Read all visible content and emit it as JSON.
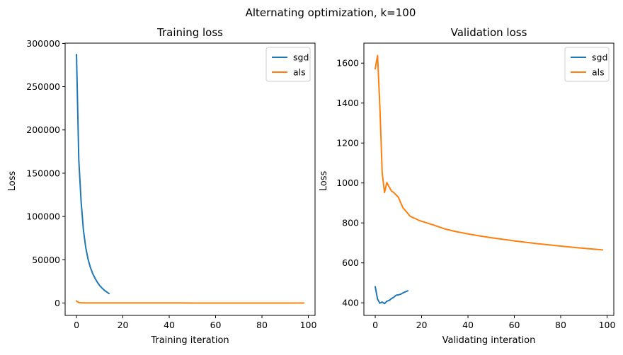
{
  "figure_title": "Alternating optimization, k=100",
  "colors": {
    "sgd": "#1f77b4",
    "als": "#ff7f0e"
  },
  "chart_data": [
    {
      "type": "line",
      "title": "Training loss",
      "xlabel": "Training iteration",
      "ylabel": "Loss",
      "xlim": [
        -4.9,
        102.9
      ],
      "ylim": [
        -14300,
        300300
      ],
      "xticks": [
        0,
        20,
        40,
        60,
        80,
        100
      ],
      "yticks": [
        0,
        50000,
        100000,
        150000,
        200000,
        250000,
        300000
      ],
      "grid": false,
      "legend": "top-right",
      "series": [
        {
          "name": "sgd",
          "color": "#1f77b4",
          "x": [
            0,
            1,
            2,
            3,
            4,
            5,
            6,
            7,
            8,
            9,
            10,
            11,
            12,
            13,
            14
          ],
          "y": [
            287000,
            165000,
            117000,
            84000,
            64000,
            50500,
            41000,
            34000,
            28500,
            24000,
            20200,
            17300,
            14800,
            12800,
            11000
          ]
        },
        {
          "name": "als",
          "color": "#ff7f0e",
          "x": [
            0,
            1,
            2,
            3,
            4,
            5,
            10,
            15,
            20,
            30,
            40,
            50,
            60,
            70,
            80,
            90,
            98
          ],
          "y": [
            2300,
            500,
            250,
            180,
            140,
            120,
            90,
            80,
            70,
            60,
            55,
            50,
            45,
            40,
            38,
            35,
            33
          ]
        }
      ]
    },
    {
      "type": "line",
      "title": "Validation loss",
      "xlabel": "Validating interation",
      "ylabel": "Loss",
      "xlim": [
        -4.9,
        102.9
      ],
      "ylim": [
        337,
        1700
      ],
      "xticks": [
        0,
        20,
        40,
        60,
        80,
        100
      ],
      "yticks": [
        400,
        600,
        800,
        1000,
        1200,
        1400,
        1600
      ],
      "grid": false,
      "legend": "top-right",
      "series": [
        {
          "name": "sgd",
          "color": "#1f77b4",
          "x": [
            0,
            1,
            2,
            3,
            4,
            5,
            6,
            7,
            8,
            9,
            10,
            11,
            12,
            13,
            14
          ],
          "y": [
            480,
            418,
            398,
            404,
            396,
            408,
            412,
            421,
            428,
            438,
            440,
            443,
            450,
            455,
            460
          ]
        },
        {
          "name": "als",
          "color": "#ff7f0e",
          "x": [
            0,
            1,
            2,
            3,
            4,
            5,
            6,
            7,
            8,
            9,
            10,
            11,
            12,
            13,
            14,
            15,
            16,
            17,
            18,
            19,
            20,
            25,
            30,
            35,
            40,
            45,
            50,
            55,
            60,
            65,
            70,
            75,
            80,
            85,
            90,
            95,
            98
          ],
          "y": [
            1572,
            1638,
            1380,
            1050,
            952,
            1002,
            980,
            960,
            952,
            940,
            928,
            900,
            875,
            862,
            848,
            834,
            828,
            823,
            818,
            812,
            808,
            790,
            770,
            756,
            745,
            735,
            726,
            718,
            710,
            703,
            696,
            690,
            684,
            678,
            673,
            668,
            665
          ]
        }
      ]
    }
  ]
}
